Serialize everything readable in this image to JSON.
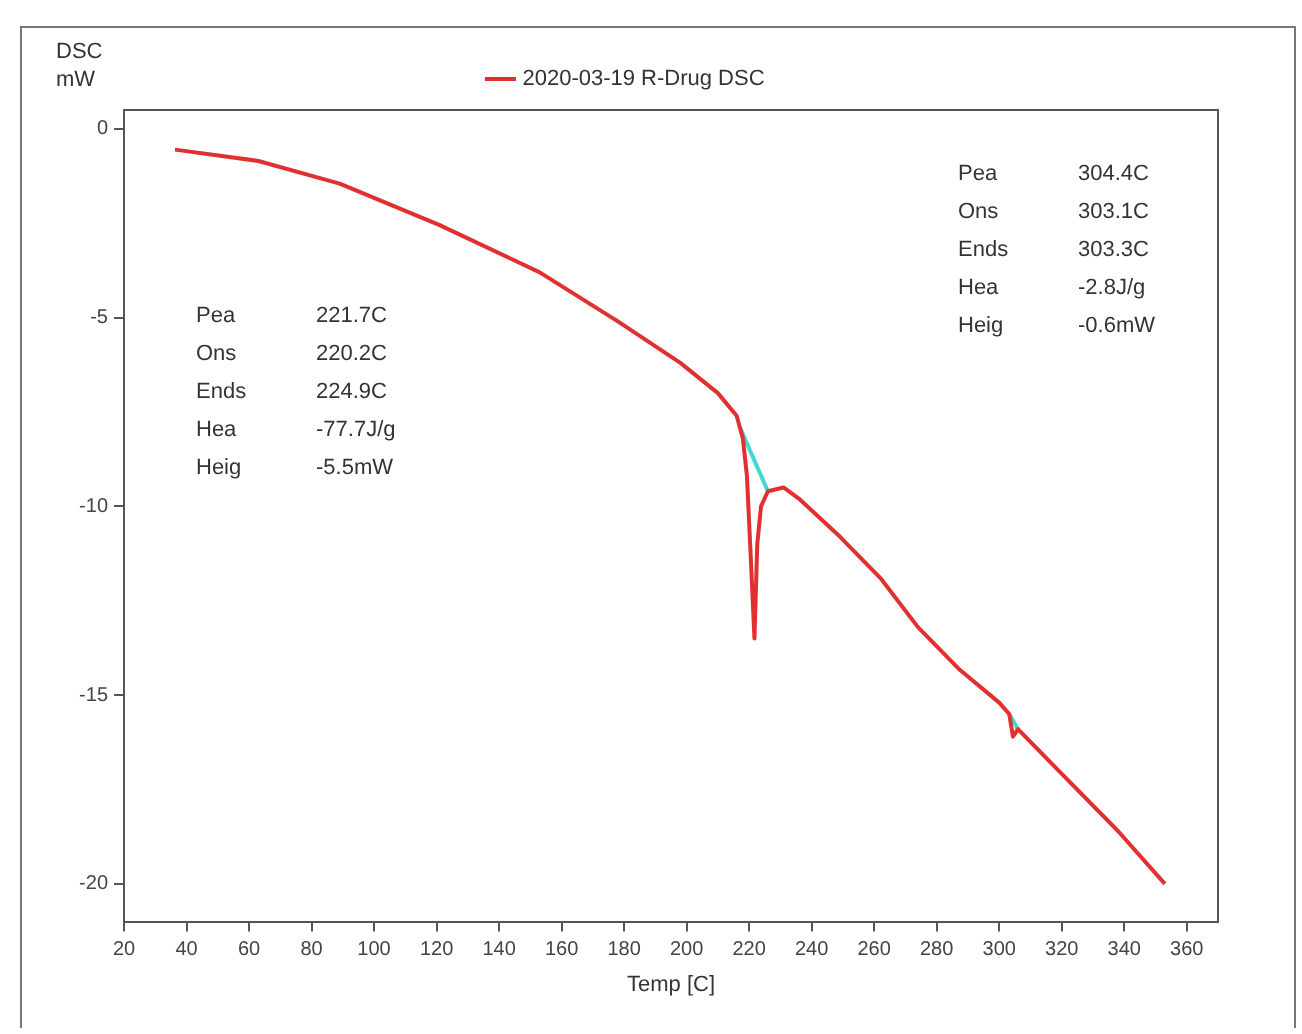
{
  "chart_data": {
    "type": "line",
    "xlabel": "Temp [C]",
    "ylabel": "DSC\nmW",
    "xlim": [
      20,
      370
    ],
    "xticks": [
      20,
      40,
      60,
      80,
      100,
      120,
      140,
      160,
      180,
      200,
      220,
      240,
      260,
      280,
      300,
      320,
      340,
      360
    ],
    "ylim": [
      -21,
      0.5
    ],
    "yticks": [
      0,
      -5,
      -10,
      -15,
      -20
    ],
    "grid": false,
    "legend": "top",
    "marker": "none",
    "line_style": "solid",
    "series": [
      {
        "name": "2020-03-19 R-Drug DSC",
        "color": "#e03030",
        "x": [
          36.3,
          63,
          89,
          121,
          153,
          178,
          198,
          210,
          216,
          218,
          219.3,
          220.6,
          221.7,
          222.6,
          223.8,
          226,
          231,
          236,
          249,
          262,
          274,
          287,
          300,
          303.2,
          304.4,
          306,
          319,
          338,
          353
        ],
        "values": [
          -0.55,
          -0.85,
          -1.45,
          -2.55,
          -3.8,
          -5.1,
          -6.2,
          -7.0,
          -7.6,
          -8.2,
          -9.2,
          -11.5,
          -13.5,
          -11,
          -10.0,
          -9.6,
          -9.5,
          -9.8,
          -10.8,
          -11.9,
          -13.2,
          -14.3,
          -15.2,
          -15.5,
          -16.1,
          -15.9,
          -17,
          -18.6,
          -20.0
        ]
      },
      {
        "color": "#40d8d0",
        "x": [
          217,
          226
        ],
        "values": [
          -7.9,
          -9.6
        ]
      },
      {
        "color": "#40d8d0",
        "x": [
          303.2,
          306
        ],
        "values": [
          -15.5,
          -15.9
        ]
      }
    ],
    "annotations": [
      "Pea 221.7C",
      "Ons 220.2C",
      "Ends 224.9C",
      "Hea -77.7J/g",
      "Heig -5.5mW",
      "Pea 304.4C",
      "Ons 303.1C",
      "Ends 303.3C",
      "Hea -2.8J/g",
      "Heig -0.6mW"
    ]
  }
}
